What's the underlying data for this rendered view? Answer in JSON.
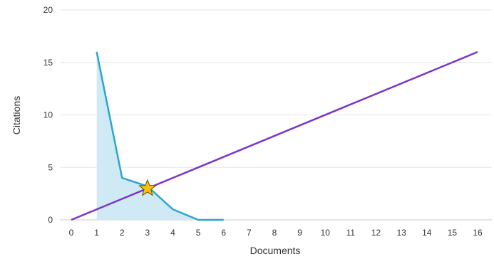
{
  "chart_data": {
    "type": "line",
    "xlabel": "Documents",
    "ylabel": "Citations",
    "xlim": [
      0,
      16
    ],
    "ylim": [
      0,
      20
    ],
    "x_ticks": [
      0,
      1,
      2,
      3,
      4,
      5,
      6,
      7,
      8,
      9,
      10,
      11,
      12,
      13,
      14,
      15,
      16
    ],
    "y_ticks": [
      0,
      5,
      10,
      15,
      20
    ],
    "grid": "horizontal",
    "series": [
      {
        "style": "area",
        "color": "#2aa6cf",
        "fill": "#cfeaf4",
        "points": [
          [
            1,
            16
          ],
          [
            2,
            4
          ],
          [
            3,
            3.2
          ],
          [
            4,
            1
          ],
          [
            5,
            0
          ],
          [
            6,
            0
          ]
        ]
      },
      {
        "style": "line",
        "color": "#7b35c9",
        "points": [
          [
            0,
            0
          ],
          [
            16,
            16
          ]
        ]
      }
    ],
    "marker": {
      "shape": "star-icon",
      "x": 3,
      "y": 3,
      "color": "#f4c20d"
    }
  }
}
